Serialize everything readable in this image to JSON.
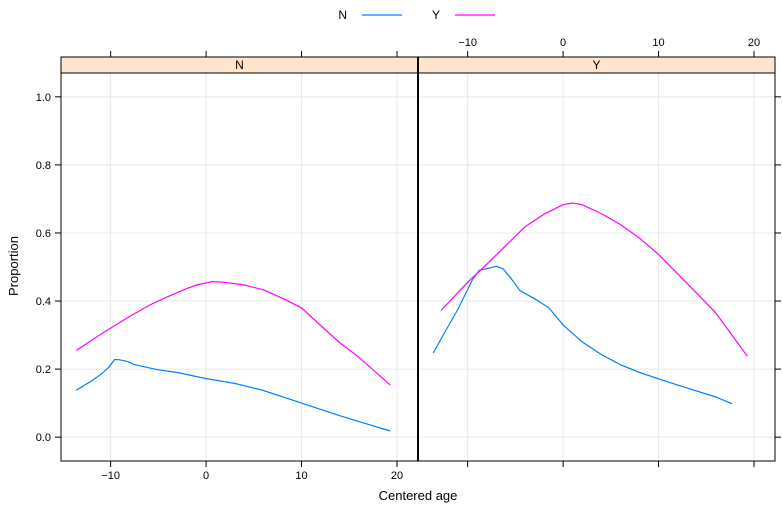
{
  "chart_data": {
    "type": "line",
    "xlabel": "Centered age",
    "ylabel": "Proportion",
    "xlim": [
      -15.2,
      22.2
    ],
    "ylim": [
      -0.07,
      1.07
    ],
    "x_ticks": [
      -10,
      0,
      10,
      20
    ],
    "y_ticks": [
      0.0,
      0.2,
      0.4,
      0.6,
      0.8,
      1.0
    ],
    "y_tick_labels": [
      "0.0",
      "0.2",
      "0.4",
      "0.6",
      "0.8",
      "1.0"
    ],
    "grid": true,
    "legend_position": "top",
    "legend": [
      {
        "label": "N",
        "color": "#0080ff"
      },
      {
        "label": "Y",
        "color": "#ff00ff"
      }
    ],
    "panels": [
      {
        "strip": "N",
        "series": [
          {
            "name": "N",
            "color": "#0080ff",
            "x": [
              -13.6,
              -12,
              -11,
              -10.2,
              -9.6,
              -9.2,
              -8.2,
              -7.6,
              -7,
              -5,
              -3,
              0,
              3,
              6,
              10,
              14,
              19.3
            ],
            "y": [
              0.138,
              0.165,
              0.185,
              0.205,
              0.228,
              0.228,
              0.222,
              0.214,
              0.21,
              0.198,
              0.19,
              0.172,
              0.158,
              0.137,
              0.1,
              0.063,
              0.018
            ]
          },
          {
            "name": "Y",
            "color": "#ff00ff",
            "x": [
              -13.6,
              -11,
              -8,
              -6,
              -4,
              -2,
              -1,
              0,
              0.6,
              2,
              4,
              6,
              8,
              10,
              12,
              14,
              16,
              19.3
            ],
            "y": [
              0.255,
              0.303,
              0.355,
              0.387,
              0.413,
              0.437,
              0.447,
              0.453,
              0.457,
              0.455,
              0.447,
              0.433,
              0.408,
              0.38,
              0.328,
              0.278,
              0.235,
              0.153
            ]
          }
        ]
      },
      {
        "strip": "Y",
        "series": [
          {
            "name": "N",
            "color": "#0080ff",
            "x": [
              -13.6,
              -12.5,
              -11,
              -9.5,
              -8.8,
              -8,
              -7,
              -6.3,
              -5.5,
              -4.5,
              -3,
              -1.5,
              0,
              2,
              4,
              6,
              8,
              12,
              16,
              17.7
            ],
            "y": [
              0.248,
              0.303,
              0.377,
              0.462,
              0.49,
              0.495,
              0.502,
              0.495,
              0.468,
              0.43,
              0.407,
              0.38,
              0.33,
              0.28,
              0.243,
              0.213,
              0.19,
              0.153,
              0.118,
              0.098
            ]
          },
          {
            "name": "Y",
            "color": "#ff00ff",
            "x": [
              -12.8,
              -10,
              -8,
              -6,
              -4,
              -2,
              0,
              1,
              2,
              4,
              6,
              8,
              10,
              12,
              14,
              16,
              19.3
            ],
            "y": [
              0.372,
              0.455,
              0.508,
              0.563,
              0.618,
              0.655,
              0.683,
              0.688,
              0.683,
              0.657,
              0.625,
              0.585,
              0.537,
              0.48,
              0.423,
              0.365,
              0.238
            ]
          }
        ]
      }
    ]
  }
}
